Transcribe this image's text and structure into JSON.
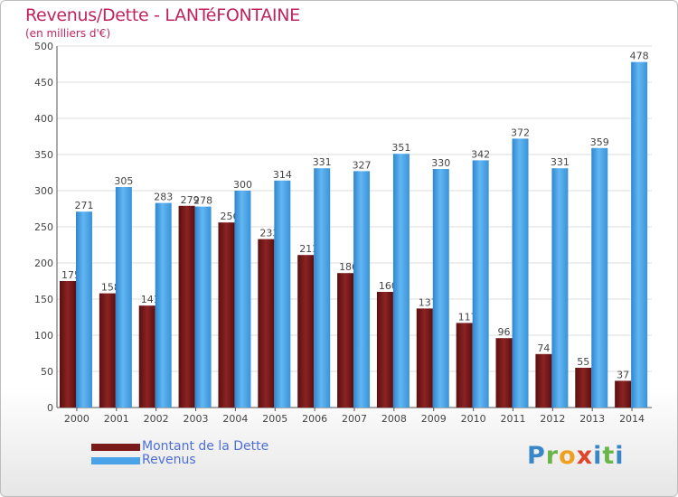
{
  "title": "Revenus/Dette - LANTéFONTAINE",
  "subtitle": "(en milliers d'€)",
  "logo_text": "Proxiti",
  "colors": {
    "title": "#c0245f",
    "debt": "#7a1a1a",
    "revenue": "#4aa3e8",
    "legend_text": "#4f6fd6"
  },
  "chart_data": {
    "type": "bar",
    "categories": [
      "2000",
      "2001",
      "2002",
      "2003",
      "2004",
      "2005",
      "2006",
      "2007",
      "2008",
      "2009",
      "2010",
      "2011",
      "2012",
      "2013",
      "2014"
    ],
    "series": [
      {
        "name": "Montant de la Dette",
        "values": [
          175,
          158,
          141,
          279,
          256,
          233,
          211,
          186,
          160,
          137,
          117,
          96,
          74,
          55,
          37
        ]
      },
      {
        "name": "Revenus",
        "values": [
          271,
          305,
          283,
          278,
          300,
          314,
          331,
          327,
          351,
          330,
          342,
          372,
          331,
          359,
          478
        ]
      }
    ],
    "yticks": [
      0,
      50,
      100,
      150,
      200,
      250,
      300,
      350,
      400,
      450,
      500
    ],
    "ylim": [
      0,
      500
    ],
    "grid": true,
    "legend_position": "bottom-left"
  }
}
